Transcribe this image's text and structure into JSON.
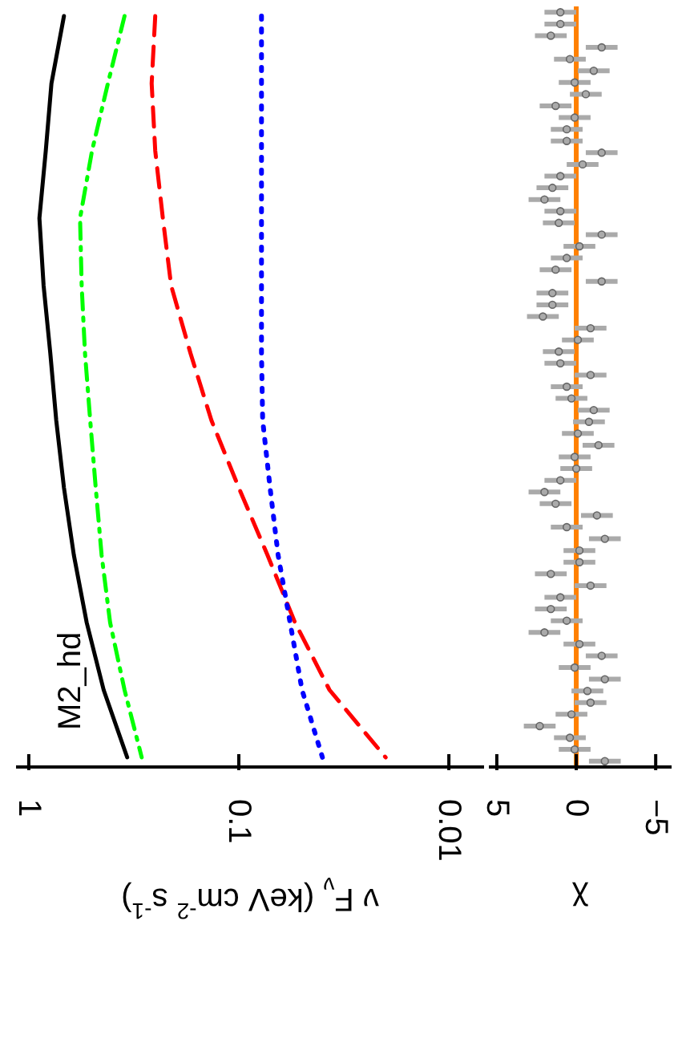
{
  "chart_data": [
    {
      "type": "line",
      "orientation": "horizontal",
      "log": "x",
      "xlabel": "ν F$_{ν}$ (keV cm$^{-2}$ s$^{-1}$)",
      "annotations": [
        "M2_hd"
      ],
      "categories": [
        null,
        null,
        null,
        null,
        null,
        null,
        null,
        null,
        null,
        null,
        null,
        null
      ],
      "series": [
        {
          "color": "#000000",
          "line_style": "solid",
          "values": [
            0.68,
            0.78,
            0.83,
            0.89,
            0.85,
            0.79,
            0.74,
            0.68,
            0.61,
            0.53,
            0.44,
            0.34
          ]
        },
        {
          "color": "#00ff00",
          "line_style": "dashdot",
          "values": [
            0.35,
            0.42,
            0.5,
            0.57,
            0.56,
            0.54,
            0.51,
            0.48,
            0.45,
            0.41,
            0.35,
            0.29
          ]
        },
        {
          "color": "#ff0000",
          "line_style": "dashed",
          "values": [
            0.25,
            0.26,
            0.25,
            0.23,
            0.21,
            0.17,
            0.135,
            0.1,
            0.073,
            0.054,
            0.037,
            0.02
          ]
        },
        {
          "color": "#0000ff",
          "line_style": "dotted",
          "values": [
            0.078,
            0.078,
            0.078,
            0.078,
            0.078,
            0.078,
            0.077,
            0.071,
            0.065,
            0.057,
            0.05,
            0.04
          ]
        }
      ],
      "xlim": [
        1.15,
        0.0068
      ],
      "xticks": [
        1,
        0.1,
        0.01
      ]
    },
    {
      "type": "scatter",
      "orientation": "horizontal",
      "xlabel": "χ",
      "marker": "circle",
      "color": "#aaaaaa",
      "categories": [
        null,
        null,
        null,
        null,
        null,
        null,
        null,
        null,
        null,
        null,
        null,
        null,
        null,
        null,
        null,
        null,
        null,
        null,
        null,
        null,
        null,
        null,
        null,
        null,
        null,
        null,
        null,
        null,
        null,
        null,
        null,
        null,
        null,
        null,
        null,
        null,
        null,
        null,
        null,
        null,
        null,
        null,
        null,
        null,
        null,
        null,
        null,
        null,
        null,
        null,
        null,
        null,
        null,
        null,
        null,
        null,
        null,
        null,
        null,
        null,
        null,
        null,
        null,
        null,
        null
      ],
      "values": [
        1.0,
        1.0,
        1.6,
        -1.6,
        0.4,
        -1.1,
        0.1,
        -0.6,
        1.3,
        0.1,
        0.6,
        0.6,
        -1.6,
        -0.4,
        1.0,
        1.5,
        2.0,
        1.0,
        1.1,
        -1.6,
        -0.2,
        0.6,
        1.3,
        -1.6,
        1.5,
        1.5,
        2.1,
        -0.9,
        -0.1,
        1.1,
        1.0,
        -0.9,
        0.6,
        0.3,
        -1.1,
        -0.8,
        -0.1,
        -1.4,
        0.1,
        0.0,
        1.0,
        2.0,
        1.3,
        -1.3,
        0.6,
        -1.8,
        -0.2,
        -0.2,
        1.6,
        -0.9,
        1.0,
        1.6,
        0.6,
        2.0,
        -0.2,
        -1.6,
        0.1,
        -1.8,
        -0.7,
        -0.9,
        0.3,
        2.3,
        0.4,
        0.1,
        -1.8
      ],
      "errors": [
        1,
        1,
        1,
        1,
        1,
        1,
        1,
        1,
        1,
        1,
        1,
        1,
        1,
        1,
        1,
        1,
        1,
        1,
        1,
        1,
        1,
        1,
        1,
        1,
        1,
        1,
        1,
        1,
        1,
        1,
        1,
        1,
        1,
        1,
        1,
        1,
        1,
        1,
        1,
        1,
        1,
        1,
        1,
        1,
        1,
        1,
        1,
        1,
        1,
        1,
        1,
        1,
        1,
        1,
        1,
        1,
        1,
        1,
        1,
        1,
        1,
        1,
        1,
        1,
        1
      ],
      "ref_lines": [
        {
          "axis": "x",
          "value": 0,
          "color": "#ff8000"
        }
      ],
      "xlim": [
        5.5,
        -6
      ],
      "xticks": [
        5,
        0,
        {
          "value": -5,
          "label": "−5"
        }
      ]
    }
  ]
}
